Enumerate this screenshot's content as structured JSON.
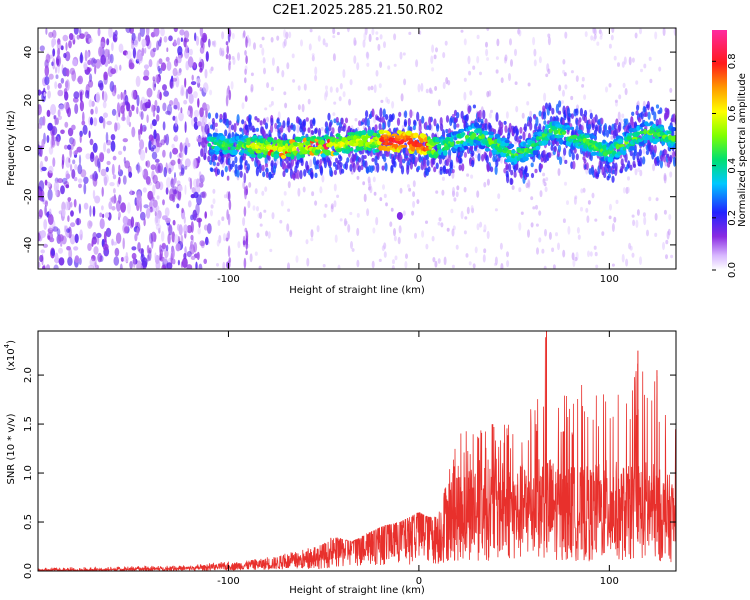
{
  "figure_title": "C2E1.2025.285.21.50.R02",
  "chart_data": [
    {
      "type": "heatmap",
      "title": "C2E1.2025.285.21.50.R02",
      "xlabel": "Height of straight line (km)",
      "ylabel": "Frequency (Hz)",
      "xlim": [
        -200,
        135
      ],
      "ylim": [
        -50,
        50
      ],
      "x_ticks": [
        -100,
        0,
        100
      ],
      "x_tick_labels": [
        "-100",
        "0",
        "100"
      ],
      "y_ticks": [
        -40,
        -20,
        0,
        20,
        40
      ],
      "y_tick_labels": [
        "-40",
        "-20",
        "0",
        "20",
        "40"
      ],
      "colorbar": {
        "label": "Normalized spectral amplitude",
        "range": [
          0,
          0.92
        ],
        "ticks": [
          0,
          0.2,
          0.4,
          0.6,
          0.8
        ],
        "tick_labels": [
          "0.0",
          "0.2",
          "0.4",
          "0.6",
          "0.8"
        ],
        "colormap": "rainbow (white-violet-blue-cyan-green-yellow-red-magenta)"
      },
      "features": [
        {
          "name": "noise region",
          "x_range": [
            -200,
            -110
          ],
          "y_range": [
            -50,
            50
          ],
          "amplitude": "low (0.05-0.2)"
        },
        {
          "name": "Doppler band",
          "x_range": [
            -110,
            135
          ],
          "center_freq_hz": 2,
          "amplitude_peak": 0.9
        },
        {
          "name": "vertical streaks",
          "x_values": [
            -100,
            -91
          ],
          "amplitude": "low"
        },
        {
          "name": "isolated blob",
          "x": -10,
          "y": -28,
          "amplitude": "low"
        }
      ],
      "band_centerline": {
        "x": [
          -110,
          -90,
          -70,
          -50,
          -30,
          -10,
          0,
          10,
          20,
          30,
          40,
          50,
          60,
          70,
          80,
          90,
          100,
          110,
          120,
          135
        ],
        "y": [
          2,
          1,
          0,
          1,
          3,
          3,
          2,
          0,
          3,
          6,
          2,
          -3,
          1,
          8,
          5,
          2,
          -2,
          3,
          7,
          4
        ]
      }
    },
    {
      "type": "line",
      "title": "",
      "xlabel": "Height of straight line (km)",
      "ylabel": "SNR (10 * v/v)",
      "y_multiplier_label": "(x10",
      "y_multiplier_exp": "4",
      "xlim": [
        -200,
        135
      ],
      "ylim": [
        0,
        2.45
      ],
      "x_ticks": [
        -100,
        0,
        100
      ],
      "x_tick_labels": [
        "-100",
        "0",
        "100"
      ],
      "y_ticks": [
        0,
        0.5,
        1.0,
        1.5,
        2.0
      ],
      "y_tick_labels": [
        "0.0",
        "0.5",
        "1.0",
        "1.5",
        "2.0"
      ],
      "series": [
        {
          "name": "SNR",
          "color": "#e8302c",
          "envelope_x": [
            -200,
            -180,
            -150,
            -120,
            -100,
            -80,
            -60,
            -45,
            -35,
            -20,
            -10,
            0,
            5,
            10,
            15,
            20,
            30,
            40,
            50,
            60,
            67,
            70,
            80,
            90,
            100,
            110,
            115,
            120,
            125,
            130,
            135
          ],
          "envelope_mean": [
            0.01,
            0.01,
            0.02,
            0.03,
            0.05,
            0.08,
            0.12,
            0.2,
            0.28,
            0.38,
            0.4,
            0.45,
            0.5,
            0.4,
            0.6,
            0.65,
            0.7,
            0.7,
            0.65,
            0.7,
            0.75,
            0.7,
            0.65,
            0.65,
            0.7,
            0.65,
            0.7,
            0.7,
            0.65,
            0.6,
            0.6
          ],
          "envelope_max": [
            0.03,
            0.04,
            0.05,
            0.06,
            0.1,
            0.15,
            0.22,
            0.35,
            0.3,
            0.45,
            0.5,
            0.6,
            0.55,
            0.55,
            0.95,
            1.4,
            1.5,
            1.55,
            1.65,
            1.7,
            2.45,
            1.8,
            1.85,
            1.95,
            1.9,
            1.7,
            2.25,
            1.9,
            2.05,
            1.7,
            1.6
          ],
          "peaks": [
            {
              "x": 67,
              "y": 2.45
            },
            {
              "x": 115,
              "y": 2.25
            },
            {
              "x": 125,
              "y": 2.05
            }
          ]
        }
      ]
    }
  ]
}
